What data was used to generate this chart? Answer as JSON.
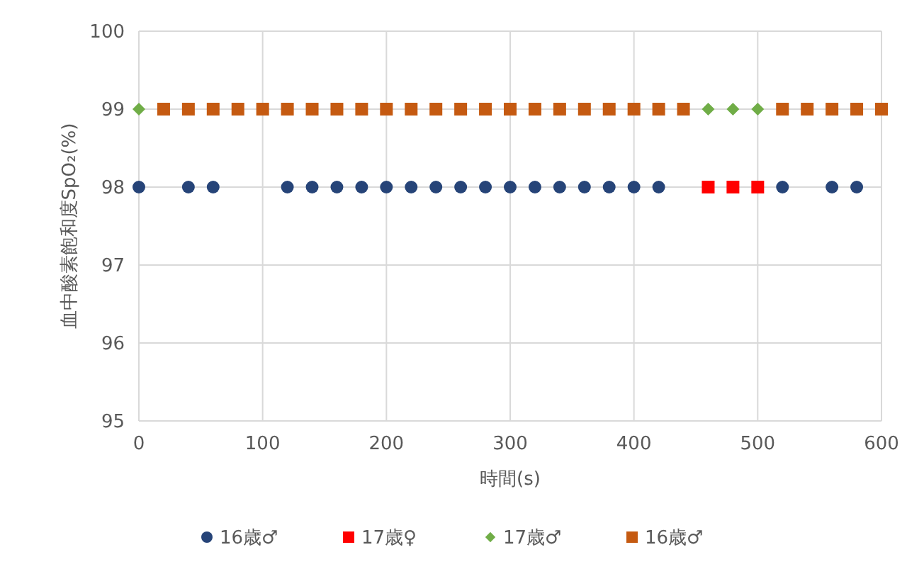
{
  "chart_data": {
    "type": "scatter",
    "xlabel": "時間(s)",
    "ylabel": "血中酸素飽和度SpO₂(%)",
    "x": [
      0,
      20,
      40,
      60,
      80,
      100,
      120,
      140,
      160,
      180,
      200,
      220,
      240,
      260,
      280,
      300,
      320,
      340,
      360,
      380,
      400,
      420,
      440,
      460,
      480,
      500,
      520,
      540,
      560,
      580,
      600
    ],
    "series": [
      {
        "name": "16歳♂",
        "color": "#264478",
        "marker": "circle",
        "values": [
          98,
          null,
          98,
          98,
          null,
          null,
          98,
          98,
          98,
          98,
          98,
          98,
          98,
          98,
          98,
          98,
          98,
          98,
          98,
          98,
          98,
          98,
          null,
          null,
          null,
          null,
          98,
          null,
          98,
          98,
          null
        ]
      },
      {
        "name": "17歳♀",
        "color": "#ff0000",
        "marker": "square",
        "values": [
          null,
          null,
          null,
          null,
          null,
          null,
          null,
          null,
          null,
          null,
          null,
          null,
          null,
          null,
          null,
          null,
          null,
          null,
          null,
          null,
          null,
          null,
          null,
          98,
          98,
          98,
          null,
          null,
          null,
          null,
          null
        ]
      },
      {
        "name": "17歳♂",
        "color": "#70ad47",
        "marker": "diamond",
        "values": [
          99,
          null,
          null,
          null,
          null,
          null,
          null,
          null,
          null,
          null,
          null,
          null,
          null,
          null,
          null,
          null,
          null,
          null,
          null,
          null,
          null,
          null,
          null,
          99,
          99,
          99,
          null,
          null,
          null,
          null,
          null
        ]
      },
      {
        "name": "16歳♂",
        "color": "#c55a11",
        "marker": "square",
        "values": [
          null,
          99,
          99,
          99,
          99,
          99,
          99,
          99,
          99,
          99,
          99,
          99,
          99,
          99,
          99,
          99,
          99,
          99,
          99,
          99,
          99,
          99,
          99,
          null,
          null,
          null,
          99,
          99,
          99,
          99,
          99
        ]
      }
    ],
    "xlim": [
      0,
      600
    ],
    "xticks": [
      0,
      100,
      200,
      300,
      400,
      500,
      600
    ],
    "ylim": [
      95,
      100
    ],
    "yticks": [
      95,
      96,
      97,
      98,
      99,
      100
    ],
    "grid": true,
    "legend": "bottom"
  }
}
